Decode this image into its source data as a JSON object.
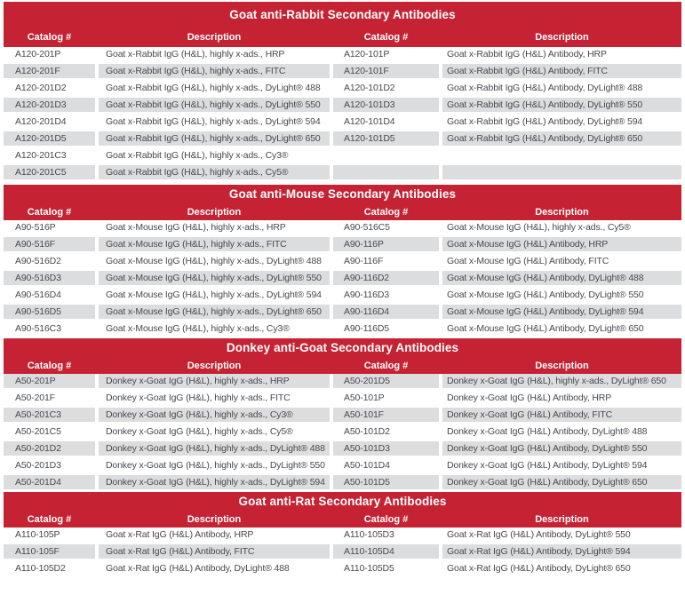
{
  "colors": {
    "band_red": "#C52334",
    "row_gray": "#DCDDDE",
    "body_text": "#474A4E",
    "header_text": "#FFFFFF"
  },
  "table": {
    "columns": [
      "Catalog #",
      "Description",
      "Catalog #",
      "Description"
    ],
    "sections": [
      {
        "title": "Goat anti-Rabbit Secondary Antibodies",
        "rows": [
          [
            "A120-201P",
            "Goat x-Rabbit IgG (H&L), highly x-ads., HRP",
            "A120-101P",
            "Goat x-Rabbit IgG (H&L) Antibody, HRP"
          ],
          [
            "A120-201F",
            "Goat x-Rabbit IgG (H&L), highly x-ads., FITC",
            "A120-101F",
            "Goat x-Rabbit IgG (H&L) Antibody, FITC"
          ],
          [
            "A120-201D2",
            "Goat x-Rabbit IgG (H&L), highly x-ads., DyLight® 488",
            "A120-101D2",
            "Goat x-Rabbit IgG (H&L) Antibody, DyLight® 488"
          ],
          [
            "A120-201D3",
            "Goat x-Rabbit IgG (H&L), highly x-ads., DyLight® 550",
            "A120-101D3",
            "Goat x-Rabbit IgG (H&L) Antibody, DyLight® 550"
          ],
          [
            "A120-201D4",
            "Goat x-Rabbit IgG (H&L), highly x-ads., DyLight® 594",
            "A120-101D4",
            "Goat x-Rabbit IgG (H&L) Antibody, DyLight® 594"
          ],
          [
            "A120-201D5",
            "Goat x-Rabbit IgG (H&L), highly x-ads., DyLight® 650",
            "A120-101D5",
            "Goat x-Rabbit IgG (H&L) Antibody, DyLight® 650"
          ],
          [
            "A120-201C3",
            "Goat x-Rabbit IgG (H&L), highly x-ads., Cy3®",
            "",
            ""
          ],
          [
            "A120-201C5",
            "Goat x-Rabbit IgG (H&L), highly x-ads., Cy5®",
            "",
            ""
          ]
        ]
      },
      {
        "title": "Goat anti-Mouse Secondary Antibodies",
        "rows": [
          [
            "A90-516P",
            "Goat x-Mouse IgG (H&L), highly x-ads., HRP",
            "A90-516C5",
            "Goat x-Mouse IgG (H&L), highly x-ads., Cy5®"
          ],
          [
            "A90-516F",
            "Goat x-Mouse IgG (H&L), highly x-ads., FITC",
            "A90-116P",
            "Goat x-Mouse IgG (H&L) Antibody, HRP"
          ],
          [
            "A90-516D2",
            "Goat x-Mouse IgG (H&L), highly x-ads., DyLight® 488",
            "A90-116F",
            "Goat x-Mouse IgG (H&L) Antibody, FITC"
          ],
          [
            "A90-516D3",
            "Goat x-Mouse IgG (H&L), highly x-ads., DyLight® 550",
            "A90-116D2",
            "Goat x-Mouse IgG (H&L) Antibody, DyLight® 488"
          ],
          [
            "A90-516D4",
            "Goat x-Mouse IgG (H&L), highly x-ads., DyLight® 594",
            "A90-116D3",
            "Goat x-Mouse IgG (H&L) Antibody, DyLight® 550"
          ],
          [
            "A90-516D5",
            "Goat x-Mouse IgG (H&L), highly x-ads., DyLight® 650",
            "A90-116D4",
            "Goat x-Mouse IgG (H&L) Antibody, DyLight® 594"
          ],
          [
            "A90-516C3",
            "Goat x-Mouse IgG (H&L), highly x-ads., Cy3®",
            "A90-116D5",
            "Goat x-Mouse IgG (H&L) Antibody, DyLight® 650"
          ]
        ]
      },
      {
        "title": "Donkey anti-Goat Secondary Antibodies",
        "rows": [
          [
            "A50-201P",
            "Donkey x-Goat IgG (H&L), highly x-ads., HRP",
            "A50-201D5",
            "Donkey x-Goat IgG (H&L), highly x-ads., DyLight® 650"
          ],
          [
            "A50-201F",
            "Donkey x-Goat IgG (H&L), highly x-ads., FITC",
            "A50-101P",
            "Donkey x-Goat IgG (H&L) Antibody, HRP"
          ],
          [
            "A50-201C3",
            "Donkey x-Goat IgG (H&L), highly x-ads., Cy3®",
            "A50-101F",
            "Donkey x-Goat IgG (H&L) Antibody, FITC"
          ],
          [
            "A50-201C5",
            "Donkey x-Goat IgG (H&L), highly x-ads., Cy5®",
            "A50-101D2",
            "Donkey x-Goat IgG (H&L) Antibody, DyLight® 488"
          ],
          [
            "A50-201D2",
            "Donkey x-Goat IgG (H&L), highly x-ads., DyLight® 488",
            "A50-101D3",
            "Donkey x-Goat IgG (H&L) Antibody, DyLight® 550"
          ],
          [
            "A50-201D3",
            "Donkey x-Goat IgG (H&L), highly x-ads., DyLight® 550",
            "A50-101D4",
            "Donkey x-Goat IgG (H&L) Antibody, DyLight® 594"
          ],
          [
            "A50-201D4",
            "Donkey x-Goat IgG (H&L), highly x-ads., DyLight® 594",
            "A50-101D5",
            "Donkey x-Goat IgG (H&L) Antibody, DyLight® 650"
          ]
        ]
      },
      {
        "title": "Goat anti-Rat Secondary Antibodies",
        "rows": [
          [
            "A110-105P",
            "Goat x-Rat IgG (H&L) Antibody, HRP",
            "A110-105D3",
            "Goat x-Rat IgG (H&L) Antibody, DyLight® 550"
          ],
          [
            "A110-105F",
            "Goat x-Rat IgG (H&L) Antibody, FITC",
            "A110-105D4",
            "Goat x-Rat IgG (H&L) Antibody, DyLight® 594"
          ],
          [
            "A110-105D2",
            "Goat x-Rat IgG (H&L) Antibody, DyLight® 488",
            "A110-105D5",
            "Goat x-Rat IgG (H&L) Antibody, DyLight® 650"
          ]
        ]
      }
    ]
  }
}
